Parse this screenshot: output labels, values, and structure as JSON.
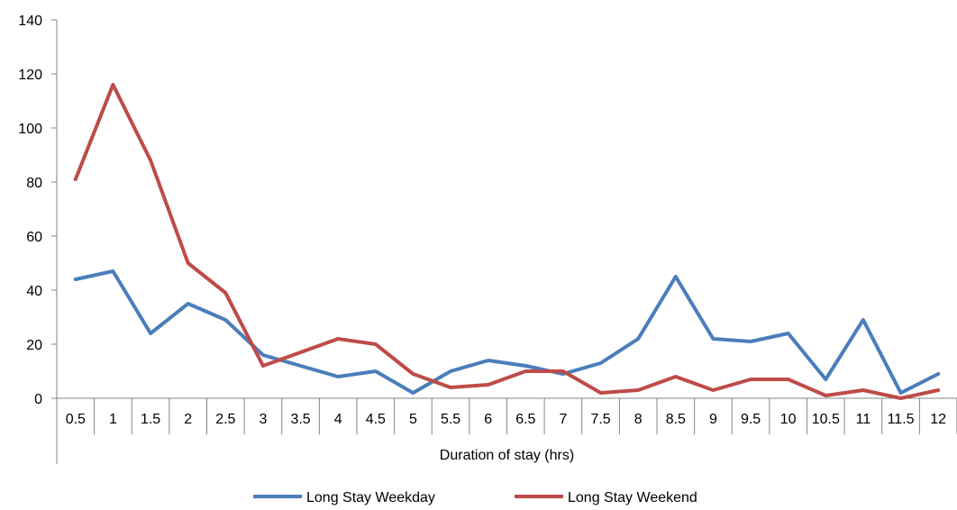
{
  "chart_data": {
    "type": "line",
    "xlabel": "Duration of stay (hrs)",
    "ylabel": "",
    "ylim": [
      0,
      140
    ],
    "ytick_step": 20,
    "yticks": [
      "0",
      "20",
      "40",
      "60",
      "80",
      "100",
      "120",
      "140"
    ],
    "categories": [
      "0.5",
      "1",
      "1.5",
      "2",
      "2.5",
      "3",
      "3.5",
      "4",
      "4.5",
      "5",
      "5.5",
      "6",
      "6.5",
      "7",
      "7.5",
      "8",
      "8.5",
      "9",
      "9.5",
      "10",
      "10.5",
      "11",
      "11.5",
      "12"
    ],
    "grid": false,
    "legend_position": "bottom",
    "series": [
      {
        "name": "Long Stay Weekday",
        "color": "#4a7ebb",
        "values": [
          44,
          47,
          24,
          35,
          29,
          16,
          12,
          8,
          10,
          2,
          10,
          14,
          12,
          9,
          13,
          22,
          45,
          22,
          21,
          24,
          7,
          29,
          2,
          9
        ]
      },
      {
        "name": "Long Stay Weekend",
        "color": "#be4b48",
        "values": [
          81,
          116,
          88,
          50,
          39,
          12,
          17,
          22,
          20,
          9,
          4,
          5,
          10,
          10,
          2,
          3,
          8,
          3,
          7,
          7,
          1,
          3,
          0,
          3
        ]
      }
    ]
  }
}
